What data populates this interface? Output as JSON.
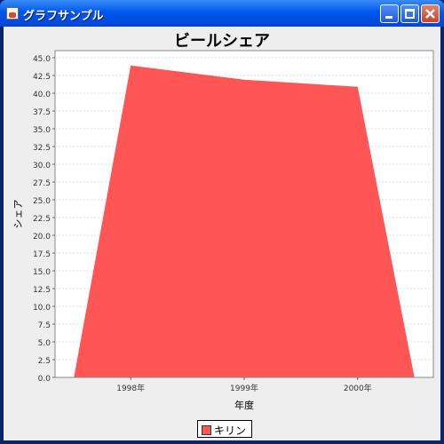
{
  "window": {
    "title": "グラフサンプル",
    "icon": "java-cup-icon"
  },
  "colors": {
    "series": "#FF5555",
    "background": "#EEEEEE",
    "plot": "#FFFFFF",
    "grid": "#DDDDDD"
  },
  "chart_data": {
    "type": "area",
    "title": "ビールシェア",
    "xlabel": "年度",
    "ylabel": "シェア",
    "categories": [
      "1998年",
      "1999年",
      "2000年"
    ],
    "series": [
      {
        "name": "キリン",
        "values": [
          43.9,
          41.9,
          40.9
        ]
      }
    ],
    "ylim": [
      0,
      46
    ],
    "yticks": [
      "0.0",
      "2.5",
      "5.0",
      "7.5",
      "10.0",
      "12.5",
      "15.0",
      "17.5",
      "20.0",
      "22.5",
      "25.0",
      "27.5",
      "30.0",
      "32.5",
      "35.0",
      "37.5",
      "40.0",
      "42.5",
      "45.0"
    ],
    "grid": true,
    "legend": "bottom"
  }
}
